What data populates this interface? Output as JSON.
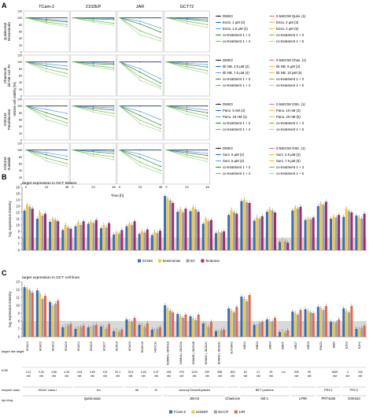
{
  "colors": {
    "dmso": "#111111",
    "low": "#1f5fae",
    "mid": "#5a9bd5",
    "ec50": "#e57373",
    "high": "#f0b44c",
    "co1": "#2e7d32",
    "co2": "#7cb342",
    "co3": "#a5d6a7",
    "gcnis": "#3b6eb5",
    "seminoma": "#f2c744",
    "ec": "#9aa3ad",
    "teratoma": "#9c2f6b",
    "tcam2": "#3b6eb5",
    "e2102": "#f2c744",
    "ncc": "#9aa3ad",
    "jar": "#e06a4e",
    "band": "#d9d9d9"
  },
  "panels": {
    "a": "A",
    "b": "B",
    "c": "C"
  },
  "chart_data": [
    {
      "type": "line",
      "panel": "A",
      "columns": [
        "TCam-2",
        "2102EP",
        "JAR",
        "GCT72"
      ],
      "x_ticks": [
        "0",
        "24",
        "48"
      ],
      "xlabel": "Time [h]",
      "y_ticks": [
        "0",
        "20",
        "40",
        "60",
        "80",
        "100",
        "120"
      ],
      "ylim": [
        0,
        120
      ],
      "ylabel": "relative cell viability [%]",
      "rows": [
        {
          "label_line1": "Quisinostat",
          "label_line2": "Enzastaurin",
          "legend": [
            "DMSO",
            "Enza. 1 µM (2)",
            "Enza. 1.5 µM (4)",
            "co-treatment 1 + 2",
            "co-treatment 1 + 4",
            "0.5xEC50 Quisi. (1)",
            "Enza. 2 µM (3)",
            "Enza. 2 µM (5)",
            "co-treatment 1 + 3",
            "co-treatment 1 + 5"
          ],
          "curves": [
            [
              [
                100,
                100,
                100
              ],
              [
                100,
                96,
                92
              ],
              [
                100,
                93,
                88
              ],
              [
                100,
                88,
                80
              ],
              [
                100,
                84,
                74
              ]
            ],
            [
              [
                100,
                100,
                100
              ],
              [
                100,
                99,
                98
              ],
              [
                100,
                97,
                95
              ],
              [
                100,
                92,
                84
              ],
              [
                100,
                88,
                78
              ]
            ],
            [
              [
                100,
                100,
                100
              ],
              [
                100,
                90,
                70
              ],
              [
                100,
                82,
                58
              ],
              [
                100,
                62,
                40
              ],
              [
                100,
                50,
                32
              ]
            ],
            [
              [
                100,
                100,
                100
              ],
              [
                100,
                98,
                95
              ],
              [
                100,
                96,
                90
              ],
              [
                100,
                90,
                80
              ],
              [
                100,
                84,
                72
              ]
            ]
          ]
        },
        {
          "label_line1": "Chaetocin",
          "label_line2": "kb NB 142-70",
          "legend": [
            "DMSO",
            "kb NB. 2.5 µM (2)",
            "kb NB. 7.5 µM (4)",
            "co-treatment 1 + 2",
            "co-treatment 1 + 4",
            "0.5xEC50 Chae. (1)",
            "kb NB. 5 µM (3)",
            "kb NB. 10 µM (5)",
            "co-treatment 1 + 3",
            "co-treatment 1 + 5"
          ],
          "curves": [
            [
              [
                100,
                100,
                100
              ],
              [
                100,
                94,
                88
              ],
              [
                100,
                88,
                78
              ],
              [
                100,
                80,
                66
              ],
              [
                100,
                72,
                56
              ]
            ],
            [
              [
                100,
                100,
                100
              ],
              [
                100,
                98,
                96
              ],
              [
                100,
                95,
                92
              ],
              [
                100,
                90,
                82
              ],
              [
                100,
                86,
                76
              ]
            ],
            [
              [
                100,
                100,
                100
              ],
              [
                100,
                80,
                50
              ],
              [
                100,
                70,
                38
              ],
              [
                100,
                56,
                28
              ],
              [
                100,
                46,
                22
              ]
            ],
            [
              [
                100,
                100,
                100
              ],
              [
                100,
                96,
                92
              ],
              [
                100,
                92,
                85
              ],
              [
                100,
                86,
                74
              ],
              [
                100,
                80,
                66
              ]
            ]
          ]
        },
        {
          "label_line1": "GSK343",
          "label_line2": "Panobinostat",
          "legend": [
            "DMSO",
            "Pano. 5 nM (2)",
            "Pano. 15 nM (4)",
            "co-treatment 1 + 2",
            "co-treatment 1 + 4",
            "0.5xEC50 GSK. (1)",
            "Pano. 10 nM (3)",
            "Pano. 20 nM (5)",
            "co-treatment 1 + 3",
            "co-treatment 1 + 5"
          ],
          "curves": [
            [
              [
                100,
                100,
                100
              ],
              [
                100,
                90,
                78
              ],
              [
                100,
                80,
                62
              ],
              [
                100,
                70,
                50
              ],
              [
                100,
                60,
                42
              ]
            ],
            [
              [
                100,
                100,
                100
              ],
              [
                100,
                97,
                94
              ],
              [
                100,
                93,
                88
              ],
              [
                100,
                88,
                78
              ],
              [
                100,
                82,
                70
              ]
            ],
            [
              [
                100,
                100,
                100
              ],
              [
                100,
                84,
                60
              ],
              [
                100,
                72,
                44
              ],
              [
                100,
                58,
                34
              ],
              [
                100,
                48,
                26
              ]
            ],
            [
              [
                100,
                100,
                100
              ],
              [
                100,
                95,
                88
              ],
              [
                100,
                90,
                80
              ],
              [
                100,
                84,
                70
              ],
              [
                100,
                76,
                62
              ]
            ]
          ]
        },
        {
          "label_line1": "GSK343",
          "label_line2": "Sunitinib",
          "legend": [
            "DMSO",
            "Suni. 5 µM (2)",
            "Suni. 5 µM (4)",
            "co-treatment 1 + 2",
            "co-treatment 1 + 4",
            "0.5xEC50 GSK. (1)",
            "Suni. 2.5 µM (3)",
            "Suni. 7.5 µM (5)",
            "co-treatment 1 + 3",
            "co-treatment 1 + 5"
          ],
          "curves": [
            [
              [
                100,
                100,
                100
              ],
              [
                100,
                92,
                82
              ],
              [
                100,
                86,
                72
              ],
              [
                100,
                76,
                60
              ],
              [
                100,
                68,
                52
              ]
            ],
            [
              [
                100,
                100,
                100
              ],
              [
                100,
                98,
                96
              ],
              [
                100,
                95,
                90
              ],
              [
                100,
                88,
                80
              ],
              [
                100,
                82,
                72
              ]
            ],
            [
              [
                100,
                100,
                100
              ],
              [
                100,
                88,
                66
              ],
              [
                100,
                78,
                52
              ],
              [
                100,
                64,
                40
              ],
              [
                100,
                54,
                32
              ]
            ],
            [
              [
                100,
                100,
                100
              ],
              [
                100,
                96,
                90
              ],
              [
                100,
                92,
                84
              ],
              [
                100,
                86,
                74
              ],
              [
                100,
                80,
                66
              ]
            ]
          ]
        }
      ]
    },
    {
      "type": "bar",
      "panel": "B",
      "title": "target expression in GCT tissues",
      "ylabel": "log₂ expression intensity",
      "y_ticks": [
        "6",
        "7",
        "8",
        "9",
        "10",
        "11",
        "12",
        "13",
        "14",
        "15",
        "16"
      ],
      "ylim": [
        6,
        16
      ],
      "band": [
        6,
        8
      ],
      "categories": [
        "HDAC1",
        "HDAC2",
        "HDAC3",
        "HDAC8",
        "HDAC4",
        "HDAC5",
        "HDAC7",
        "HDAC9",
        "HDAC6",
        "HDAC10",
        "HDAC11",
        "KDM5A | JARID1A",
        "KDM4A | JMJD2A",
        "KDM4B | JMJD2B",
        "KDM4C | JMJD2C",
        "KDM4D | JMJD2D",
        "SUV39H1",
        "BRD2",
        "BRD3",
        "BRD4",
        "BRDT",
        "BRD7",
        "BRD9",
        "RING1",
        "BMI1",
        "EZH2",
        "EZH1"
      ],
      "series": [
        {
          "name": "GCNIS",
          "values": [
            12.3,
            11.0,
            10.5,
            9.2,
            9.8,
            10.2,
            9.5,
            8.5,
            9.8,
            8.6,
            8.4,
            14.6,
            12.1,
            12.2,
            10.2,
            8.7,
            11.6,
            13.8,
            10.7,
            12.1,
            7.3,
            12.3,
            10.8,
            13.0,
            11.0,
            11.3,
            11.5
          ]
        },
        {
          "name": "Seminomas",
          "values": [
            13.2,
            12.0,
            11.0,
            10.0,
            10.4,
            10.5,
            10.0,
            8.8,
            10.2,
            9.0,
            8.9,
            14.2,
            12.5,
            12.8,
            11.0,
            8.9,
            12.4,
            14.0,
            11.2,
            12.5,
            7.6,
            12.8,
            11.0,
            13.4,
            11.4,
            12.6,
            11.2
          ]
        },
        {
          "name": "EC",
          "values": [
            12.9,
            11.5,
            10.8,
            9.6,
            10.0,
            10.3,
            9.6,
            8.6,
            10.0,
            8.8,
            8.7,
            13.9,
            12.0,
            12.5,
            10.6,
            8.8,
            12.0,
            13.6,
            11.0,
            12.3,
            7.4,
            12.6,
            10.9,
            13.2,
            11.2,
            12.2,
            11.0
          ]
        },
        {
          "name": "Teratoma",
          "values": [
            12.6,
            11.8,
            10.6,
            9.4,
            10.6,
            10.8,
            10.3,
            9.2,
            10.6,
            9.3,
            9.1,
            13.5,
            12.6,
            12.1,
            10.8,
            9.0,
            11.8,
            13.5,
            11.4,
            12.0,
            7.2,
            12.9,
            11.2,
            13.7,
            11.6,
            12.0,
            11.8
          ]
        }
      ]
    },
    {
      "type": "bar",
      "panel": "C",
      "title": "target expression in GCT cell lines",
      "ylabel": "log₂ expression intensity",
      "y_ticks": [
        "6",
        "7",
        "8",
        "9",
        "10",
        "11",
        "12",
        "13"
      ],
      "ylim": [
        6,
        13
      ],
      "band": [
        6,
        8
      ],
      "categories": [
        "HDAC1",
        "HDAC2",
        "HDAC3",
        "HDAC8",
        "HDAC4",
        "HDAC5",
        "HDAC7",
        "HDAC9",
        "HDAC6",
        "HDAC10",
        "HDAC11",
        "KDM5A | JARID1A",
        "KDM4A | JMJD2A",
        "KDM4B | JMJD2B",
        "KDM4C | JMJD2C",
        "KDM4D | JMJD2D",
        "SUV39H1",
        "BRD2",
        "BRD3",
        "BRD4",
        "BRDT",
        "BRD7",
        "BRD9",
        "RING1",
        "BMI1",
        "EZH2",
        "EZH1"
      ],
      "series": [
        {
          "name": "TCam-2",
          "values": [
            12.3,
            11.9,
            10.4,
            7.2,
            7.0,
            7.2,
            7.3,
            6.7,
            8.2,
            7.5,
            6.9,
            10.0,
            8.9,
            8.6,
            7.7,
            6.7,
            9.6,
            11.1,
            7.5,
            8.2,
            6.6,
            9.2,
            9.5,
            9.8,
            7.9,
            9.6,
            7.0
          ]
        },
        {
          "name": "2102EP",
          "values": [
            12.1,
            11.5,
            10.0,
            7.3,
            7.1,
            7.1,
            7.2,
            6.8,
            8.0,
            7.4,
            6.8,
            9.6,
            8.6,
            8.3,
            7.5,
            6.6,
            9.3,
            10.8,
            7.3,
            8.0,
            6.7,
            9.0,
            9.3,
            9.6,
            7.6,
            9.3,
            6.9
          ]
        },
        {
          "name": "NCCIT",
          "values": [
            11.9,
            10.8,
            10.2,
            7.4,
            7.2,
            7.4,
            7.0,
            6.6,
            7.9,
            7.2,
            7.0,
            9.3,
            8.4,
            8.1,
            7.2,
            6.8,
            9.1,
            10.5,
            7.7,
            7.9,
            6.5,
            8.8,
            9.1,
            9.4,
            7.8,
            9.1,
            7.1
          ]
        },
        {
          "name": "JAR",
          "values": [
            11.6,
            11.2,
            10.6,
            7.6,
            7.4,
            7.5,
            7.6,
            6.9,
            8.4,
            7.7,
            7.2,
            9.1,
            8.8,
            8.8,
            7.9,
            6.9,
            9.8,
            11.3,
            7.9,
            8.4,
            6.8,
            9.4,
            9.0,
            9.9,
            8.2,
            9.9,
            7.4
          ]
        }
      ]
    }
  ],
  "table": {
    "row_labels": [
      "target/ site target",
      "IC50",
      "enzyme class",
      "epi-drug"
    ],
    "ic50": [
      "0,11 nM",
      "0,33 nM",
      "4,86 nM",
      "4,26 nM",
      "0,64 nM",
      "3,69 nM",
      "119 nM",
      "32,1 nM",
      "76,8 nM",
      "0,46 nM",
      "0,37 nM",
      "445 nM",
      "375 nM",
      "1100 nM",
      "290 nM",
      "855 nM",
      "800 nM",
      "62 nM",
      "21 nM",
      "39 nM",
      "n.d.",
      "909 nM",
      "99 nM",
      "",
      "3600 nM",
      "4 nM",
      "240 nM"
    ],
    "classes": [
      {
        "label": "HDAC class I",
        "span": 4
      },
      {
        "label": "IIa",
        "span": 4
      },
      {
        "label": "IIb",
        "span": 2
      },
      {
        "label": "IV",
        "span": 1
      },
      {
        "label": "Jumonji Demethylases",
        "span": 5
      },
      {
        "label": "",
        "span": 1
      },
      {
        "label": "BET proteins",
        "span": 4
      },
      {
        "label": "",
        "span": 2
      },
      {
        "label": "PRC1",
        "span": 2
      },
      {
        "label": "PRC2",
        "span": 2
      }
    ],
    "drugs": [
      {
        "label": "Quisinostat",
        "span": 11
      },
      {
        "label": "JIB-04",
        "span": 5
      },
      {
        "label": "Chaetocin",
        "span": 1
      },
      {
        "label": "MZ-1",
        "span": 4
      },
      {
        "label": "LP99",
        "span": 2
      },
      {
        "label": "PRT4165",
        "span": 2
      },
      {
        "label": "GSK343",
        "span": 2
      }
    ]
  }
}
